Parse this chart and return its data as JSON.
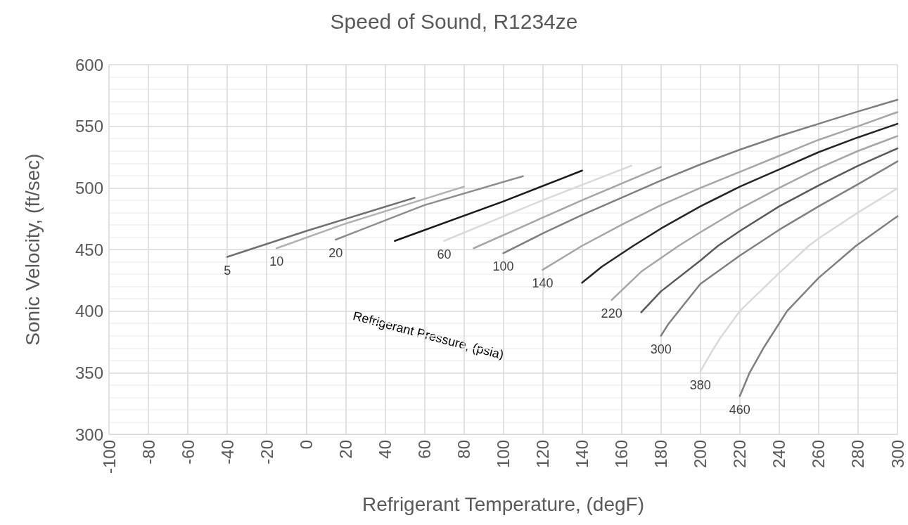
{
  "chart_data": {
    "type": "line",
    "title": "Speed of Sound, R1234ze",
    "xlabel": "Refrigerant Temperature, (degF)",
    "ylabel": "Sonic Velocity, (ft/sec)",
    "annotations": [
      "Refrigerant Pressure, (psia)"
    ],
    "xlim": [
      -100,
      300
    ],
    "xticks": [
      -100,
      -80,
      -60,
      -40,
      -20,
      0,
      20,
      40,
      60,
      80,
      100,
      120,
      140,
      160,
      180,
      200,
      220,
      240,
      260,
      280,
      300
    ],
    "ylim": [
      300,
      600
    ],
    "yticks": [
      300,
      350,
      400,
      450,
      500,
      550,
      600
    ],
    "grid": true,
    "legend": false,
    "marker": "none",
    "line_style": "solid",
    "series": [
      {
        "name": "5",
        "color": "#707070",
        "x": [
          -40,
          0,
          55
        ],
        "values": [
          444,
          465,
          492
        ]
      },
      {
        "name": "10",
        "color": "#b0b0b0",
        "x": [
          -15,
          20,
          80
        ],
        "values": [
          451,
          471,
          501
        ]
      },
      {
        "name": "20",
        "color": "#8c8c8c",
        "x": [
          15,
          60,
          110
        ],
        "values": [
          458,
          486,
          509.5
        ]
      },
      {
        "color": "#1a1a1a",
        "x": [
          45,
          100,
          140
        ],
        "values": [
          457,
          489,
          514
        ]
      },
      {
        "name": "60",
        "color": "#d9d9d9",
        "x": [
          70,
          120,
          165
        ],
        "values": [
          457,
          490,
          518
        ]
      },
      {
        "color": "#a6a6a6",
        "x": [
          85,
          140,
          180
        ],
        "values": [
          451,
          490,
          517
        ]
      },
      {
        "name": "100",
        "color": "#7f7f7f",
        "x": [
          100,
          120,
          140,
          160,
          180,
          200,
          220,
          240,
          260,
          280,
          300
        ],
        "values": [
          447,
          463,
          478,
          492,
          506,
          519,
          531,
          542,
          552,
          562,
          571.5
        ]
      },
      {
        "name": "140",
        "color": "#a6a6a6",
        "x": [
          120,
          140,
          160,
          180,
          200,
          220,
          240,
          260,
          280,
          300
        ],
        "values": [
          433.5,
          453,
          470,
          486,
          500,
          513,
          526,
          539,
          550,
          561.5
        ]
      },
      {
        "color": "#262626",
        "x": [
          140,
          150,
          166,
          180,
          200,
          220,
          240,
          260,
          280,
          300
        ],
        "values": [
          423,
          436,
          453,
          467,
          485,
          501,
          515,
          529,
          541,
          552
        ]
      },
      {
        "name": "220",
        "color": "#a6a6a6",
        "x": [
          155,
          170,
          189,
          200,
          220,
          240,
          260,
          280,
          300
        ],
        "values": [
          409,
          432,
          453,
          464,
          483,
          500,
          516,
          530,
          542
        ]
      },
      {
        "color": "#595959",
        "x": [
          170,
          180,
          200,
          209,
          220,
          240,
          260,
          280,
          300
        ],
        "values": [
          399,
          416,
          441,
          453,
          465,
          485,
          502,
          518,
          532
        ]
      },
      {
        "name": "300",
        "color": "#7f7f7f",
        "x": [
          180,
          184,
          200,
          220,
          240,
          260,
          280,
          300
        ],
        "values": [
          380,
          390,
          422,
          445,
          466,
          485,
          503,
          521.5
        ]
      },
      {
        "name": "380",
        "color": "#d9d9d9",
        "x": [
          200,
          205,
          210,
          220,
          240,
          255,
          260,
          280,
          300
        ],
        "values": [
          351,
          365,
          378,
          400,
          431,
          453,
          459,
          480,
          499.6
        ]
      },
      {
        "name": "460",
        "color": "#7f7f7f",
        "x": [
          220,
          225,
          232,
          244,
          260,
          279,
          300
        ],
        "values": [
          331,
          350,
          370,
          400,
          427,
          453,
          477
        ]
      }
    ]
  }
}
